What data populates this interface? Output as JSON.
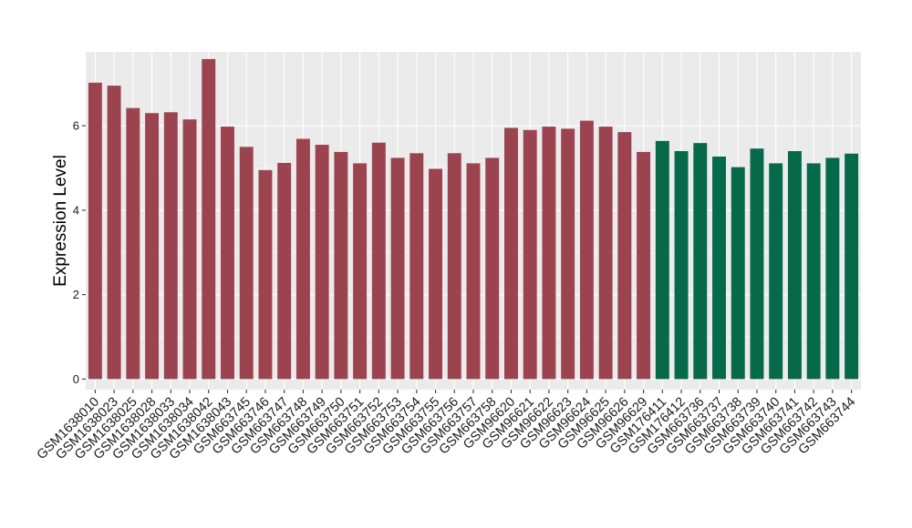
{
  "chart_data": {
    "type": "bar",
    "title": "",
    "xlabel": "",
    "ylabel": "Expression Level",
    "ylim": [
      -0.25,
      7.75
    ],
    "yticks": [
      0,
      2,
      4,
      6
    ],
    "grid": true,
    "legend": "none",
    "categories": [
      "GSM1638010",
      "GSM1638023",
      "GSM1638025",
      "GSM1638028",
      "GSM1638033",
      "GSM1638034",
      "GSM1638042",
      "GSM1638043",
      "GSM663745",
      "GSM663746",
      "GSM663747",
      "GSM663748",
      "GSM663749",
      "GSM663750",
      "GSM663751",
      "GSM663752",
      "GSM663753",
      "GSM663754",
      "GSM663755",
      "GSM663756",
      "GSM663757",
      "GSM663758",
      "GSM96620",
      "GSM96621",
      "GSM96622",
      "GSM96623",
      "GSM96624",
      "GSM96625",
      "GSM96626",
      "GSM96629",
      "GSM176411",
      "GSM176412",
      "GSM663736",
      "GSM663737",
      "GSM663738",
      "GSM663739",
      "GSM663740",
      "GSM663741",
      "GSM663742",
      "GSM663743",
      "GSM663744"
    ],
    "values": [
      7.02,
      6.95,
      6.42,
      6.3,
      6.32,
      6.15,
      7.58,
      5.98,
      5.5,
      4.95,
      5.12,
      5.69,
      5.55,
      5.38,
      5.11,
      5.6,
      5.24,
      5.35,
      4.98,
      5.35,
      5.11,
      5.24,
      5.95,
      5.9,
      5.98,
      5.93,
      6.12,
      5.98,
      5.85,
      5.38,
      5.64,
      5.4,
      5.59,
      5.27,
      5.02,
      5.46,
      5.11,
      5.4,
      5.11,
      5.24,
      5.34
    ],
    "groups": [
      0,
      0,
      0,
      0,
      0,
      0,
      0,
      0,
      0,
      0,
      0,
      0,
      0,
      0,
      0,
      0,
      0,
      0,
      0,
      0,
      0,
      0,
      0,
      0,
      0,
      0,
      0,
      0,
      0,
      0,
      1,
      1,
      1,
      1,
      1,
      1,
      1,
      1,
      1,
      1,
      1
    ],
    "colors": [
      "#9c4350",
      "#05694a"
    ],
    "panel_background": "#ebebeb",
    "grid_color": "#ffffff"
  }
}
